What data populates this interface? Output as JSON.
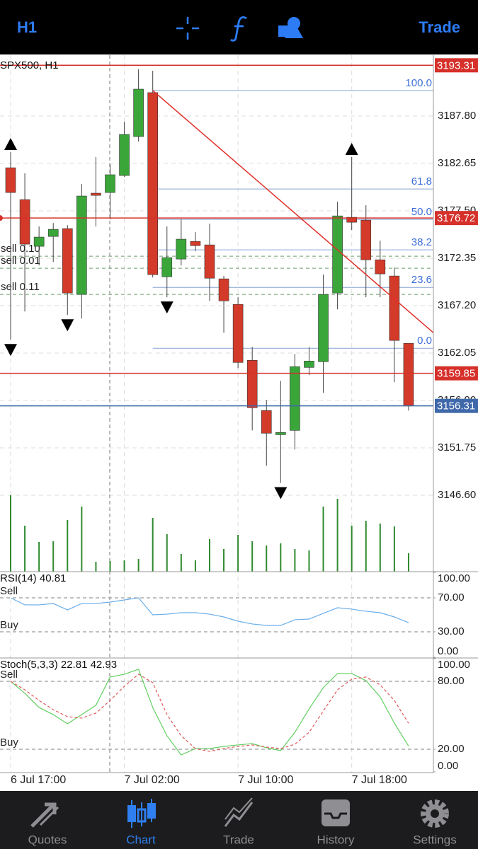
{
  "top_bar": {
    "timeframe": "H1",
    "trade": "Trade"
  },
  "chart_data": {
    "type": "candlestick",
    "title": "SPX500, H1",
    "xticks": [
      {
        "value": 0,
        "label": "6 Jul 17:00"
      },
      {
        "value": 8,
        "label": "7 Jul 02:00"
      },
      {
        "value": 16,
        "label": "7 Jul 10:00"
      },
      {
        "value": 24,
        "label": "7 Jul 18:00"
      }
    ],
    "open": [
      3182.18,
      3178.72,
      3173.65,
      3174.72,
      3175.57,
      3168.42,
      3179.42,
      3179.49,
      3181.34,
      3185.57,
      3190.34,
      3170.34,
      3172.26,
      3174.18,
      3173.8,
      3170.11,
      3167.34,
      3161.26,
      3155.8,
      3153.18,
      3153.65,
      3160.49,
      3161.11,
      3168.57,
      3176.8,
      3176.49,
      3172.18,
      3170.42,
      3163.11
    ],
    "high": [
      3183.88,
      3181.57,
      3175.8,
      3176.18,
      3175.95,
      3180.42,
      3183.34,
      3182.57,
      3187.18,
      3192.88,
      3192.72,
      3175.8,
      3176.57,
      3175.18,
      3176.11,
      3170.42,
      3168.11,
      3162.72,
      3156.95,
      3159.03,
      3161.95,
      3162.72,
      3170.57,
      3178.49,
      3183.34,
      3178.11,
      3174.26,
      3171.34,
      3163.11
    ],
    "low": [
      3163.49,
      3166.57,
      3171.57,
      3171.95,
      3166.18,
      3165.8,
      3175.8,
      3176.57,
      3181.18,
      3185.03,
      3170.26,
      3168.11,
      3171.57,
      3173.11,
      3167.72,
      3164.26,
      3160.42,
      3153.65,
      3149.8,
      3147.95,
      3151.57,
      3159.65,
      3157.72,
      3166.8,
      3175.42,
      3168.11,
      3168.11,
      3158.88,
      3155.8
    ],
    "close": [
      3179.49,
      3173.88,
      3174.65,
      3175.49,
      3168.57,
      3179.11,
      3179.18,
      3181.42,
      3185.8,
      3190.72,
      3170.57,
      3172.42,
      3174.42,
      3173.72,
      3170.18,
      3167.72,
      3161.03,
      3156.11,
      3153.34,
      3153.42,
      3160.57,
      3161.18,
      3168.42,
      3176.95,
      3176.26,
      3172.18,
      3170.65,
      3163.42,
      3156.31
    ],
    "volume": [
      108,
      65,
      42,
      43,
      73,
      92,
      14,
      15,
      16,
      18,
      76,
      53,
      25,
      16,
      46,
      32,
      52,
      43,
      37,
      40,
      32,
      30,
      92,
      103,
      65,
      72,
      68,
      64,
      26
    ],
    "up_color": "#3aa63a",
    "down_color": "#d33a29",
    "volume_color": "#2f8a2f",
    "ylim": [
      3138.3,
      3194.41
    ],
    "yticks": [
      {
        "value": 3187.8,
        "label": "3187.80"
      },
      3182.65,
      {
        "value": 3177.5,
        "label": "3177.50"
      },
      3172.35,
      {
        "value": 3167.2,
        "label": "3167.20"
      },
      3162.05,
      {
        "value": 3156.9,
        "label": "3156.90"
      },
      3151.75,
      {
        "value": 3146.6,
        "label": "3146.60"
      }
    ],
    "grid": true,
    "price_lines": [
      {
        "value": 3193.31,
        "color": "#d6302a"
      },
      {
        "value": 3176.72,
        "color": "#d6302a"
      },
      {
        "value": 3159.85,
        "color": "#d6302a"
      },
      {
        "value": 3156.31,
        "color": "#3f68aa"
      }
    ],
    "orders": [
      {
        "label": "sell 0.10",
        "value": 3172.57
      },
      {
        "label": "sell 0.01",
        "value": 3171.26
      },
      {
        "label": "sell 0.11",
        "value": 3168.42
      }
    ],
    "fibonacci": {
      "start": 10,
      "high": 3190.57,
      "low": 3162.57,
      "color": "#86a4d4",
      "levels": [
        {
          "value": 100,
          "label": "100.0"
        },
        {
          "value": 61.8,
          "label": "61.8"
        },
        {
          "value": 50,
          "label": "50.0"
        },
        {
          "value": 38.2,
          "label": "38.2"
        },
        {
          "value": 23.6,
          "label": "23.6"
        },
        {
          "value": 0,
          "label": "0.0"
        }
      ]
    },
    "trendline": {
      "x": [
        10,
        29.75
      ],
      "y": [
        3190.57,
        3164.26
      ],
      "color": "#e0302a"
    },
    "fractals_up": [
      0,
      24
    ],
    "fractals_down": [
      0,
      4,
      11,
      19
    ]
  },
  "indicators": [
    {
      "type": "line",
      "title": "RSI(14) 40.81",
      "ylim": [
        0,
        100
      ],
      "yticks": [
        {
          "value": 100,
          "label": "100.00"
        },
        {
          "value": 70,
          "label": "70.00"
        },
        {
          "value": 30,
          "label": "30.00"
        },
        {
          "value": 0,
          "label": "0.00"
        }
      ],
      "levels": [
        {
          "value": 70,
          "label": "Sell"
        },
        {
          "value": 30,
          "label": "Buy"
        }
      ],
      "series": [
        {
          "color": "#6aaee8",
          "style": "solid",
          "values": [
            70.0,
            61.7,
            61.7,
            63.3,
            55.8,
            63.3,
            63.3,
            65.0,
            67.5,
            70.0,
            50.0,
            50.8,
            52.5,
            52.5,
            50.8,
            47.5,
            42.5,
            39.2,
            37.5,
            37.5,
            44.2,
            45.0,
            51.7,
            58.3,
            56.7,
            54.2,
            52.5,
            47.5,
            40.81
          ]
        }
      ]
    },
    {
      "type": "line",
      "title": "Stoch(5,3,3) 22.81 42.93",
      "ylim": [
        0,
        100
      ],
      "yticks": [
        {
          "value": 100,
          "label": "100.00"
        },
        {
          "value": 80,
          "label": "80.00"
        },
        {
          "value": 20,
          "label": "20.00"
        },
        {
          "value": 0,
          "label": "0.00"
        }
      ],
      "levels": [
        {
          "value": 80,
          "label": "Sell"
        },
        {
          "value": 20,
          "label": "Buy"
        }
      ],
      "series": [
        {
          "color": "#62cf62",
          "style": "solid",
          "values": [
            80.0,
            69.4,
            56.9,
            50.6,
            42.5,
            50.6,
            58.8,
            83.8,
            86.3,
            90.6,
            56.9,
            31.9,
            15.0,
            20.6,
            20.6,
            22.5,
            23.8,
            25.0,
            21.3,
            18.8,
            35.0,
            55.6,
            74.4,
            86.9,
            86.9,
            80.6,
            66.3,
            43.1,
            22.81
          ]
        },
        {
          "color": "#e05a5a",
          "style": "dashed",
          "values": [
            80.0,
            72.5,
            63.1,
            55.0,
            48.8,
            47.5,
            51.9,
            63.1,
            75.6,
            86.3,
            78.8,
            50.6,
            31.9,
            20.6,
            18.1,
            20.6,
            22.5,
            23.8,
            21.9,
            20.6,
            24.4,
            35.0,
            53.8,
            72.5,
            81.9,
            83.8,
            76.9,
            63.1,
            42.93
          ]
        }
      ]
    }
  ],
  "tabs": {
    "items": [
      "Quotes",
      "Chart",
      "Trade",
      "History",
      "Settings"
    ],
    "active": 1
  }
}
